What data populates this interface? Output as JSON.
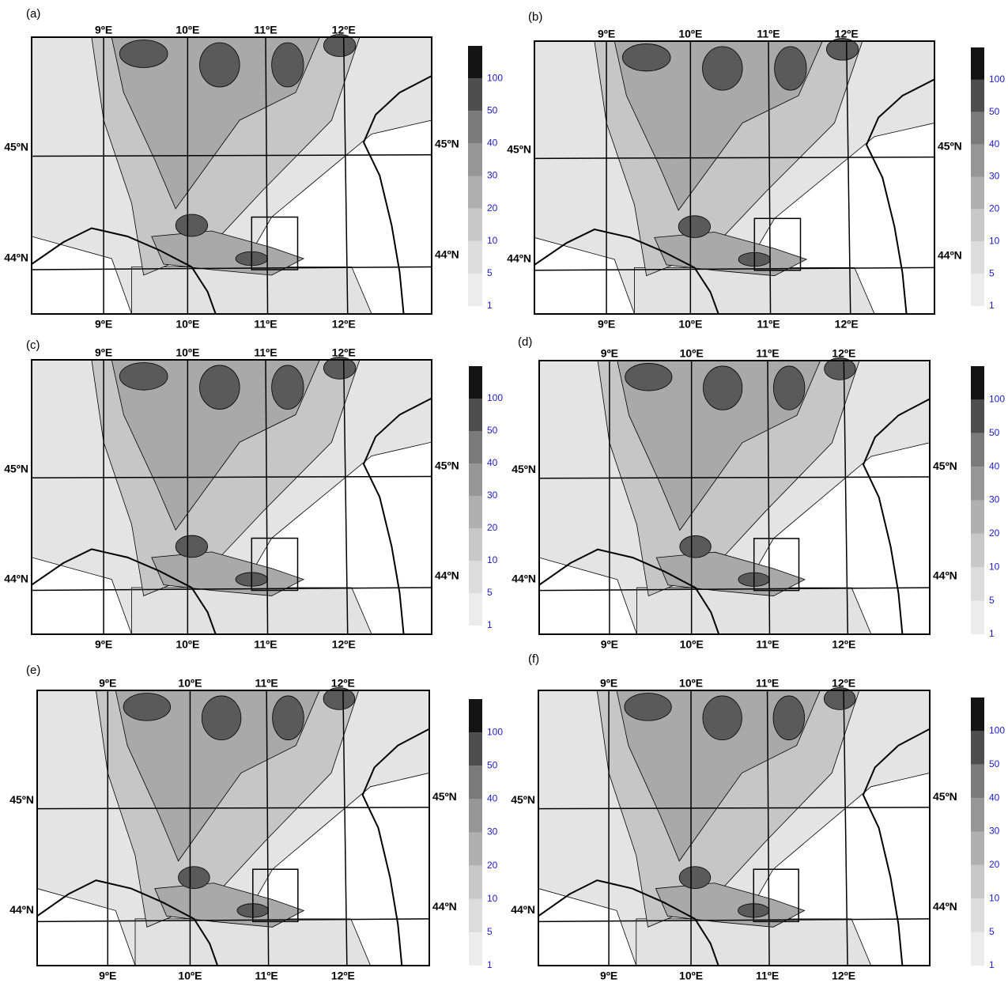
{
  "panels": [
    {
      "label": "(a)",
      "lon_top": [
        "9ºE",
        "10ºE",
        "11ºE",
        "12ºE"
      ],
      "lon_bottom": [
        "9ºE",
        "10ºE",
        "11ºE",
        "12ºE"
      ],
      "lat_left": [
        "45ºN",
        "44ºN"
      ],
      "lat_right": [
        "45ºN",
        "44ºN"
      ],
      "colorbar": [
        "1",
        "5",
        "10",
        "20",
        "30",
        "40",
        "50",
        "100"
      ]
    },
    {
      "label": "(b)",
      "lon_top": [
        "9ºE",
        "10ºE",
        "11ºE",
        "12ºE"
      ],
      "lon_bottom": [
        "9ºE",
        "10ºE",
        "11ºE",
        "12ºE"
      ],
      "lat_left": [
        "45ºN",
        "44ºN"
      ],
      "lat_right": [
        "45ºN",
        "44ºN"
      ],
      "colorbar": [
        "1",
        "5",
        "10",
        "20",
        "30",
        "40",
        "50",
        "100"
      ]
    },
    {
      "label": "(c)",
      "lon_top": [
        "9ºE",
        "10ºE",
        "11ºE",
        "12ºE"
      ],
      "lon_bottom": [
        "9ºE",
        "10ºE",
        "11ºE",
        "12ºE"
      ],
      "lat_left": [
        "45ºN",
        "44ºN"
      ],
      "lat_right": [
        "45ºN",
        "44ºN"
      ],
      "colorbar": [
        "1",
        "5",
        "10",
        "20",
        "30",
        "40",
        "50",
        "100"
      ]
    },
    {
      "label": "(d)",
      "lon_top": [
        "9ºE",
        "10ºE",
        "11ºE",
        "12ºE"
      ],
      "lon_bottom": [
        "9ºE",
        "10ºE",
        "11ºE",
        "12ºE"
      ],
      "lat_left": [
        "45ºN",
        "44ºN"
      ],
      "lat_right": [
        "45ºN",
        "44ºN"
      ],
      "colorbar": [
        "1",
        "5",
        "10",
        "20",
        "30",
        "40",
        "50",
        "100"
      ]
    },
    {
      "label": "(e)",
      "lon_top": [
        "9ºE",
        "10ºE",
        "11ºE",
        "12ºE"
      ],
      "lon_bottom": [
        "9ºE",
        "10ºE",
        "11ºE",
        "12ºE"
      ],
      "lat_left": [
        "45ºN",
        "44ºN"
      ],
      "lat_right": [
        "45ºN",
        "44ºN"
      ],
      "colorbar": [
        "1",
        "5",
        "10",
        "20",
        "30",
        "40",
        "50",
        "100"
      ]
    },
    {
      "label": "(f)",
      "lon_top": [
        "9ºE",
        "10ºE",
        "11ºE",
        "12ºE"
      ],
      "lon_bottom": [
        "9ºE",
        "10ºE",
        "11ºE",
        "12ºE"
      ],
      "lat_left": [
        "45ºN",
        "44ºN"
      ],
      "lat_right": [
        "45ºN",
        "44ºN"
      ],
      "colorbar": [
        "1",
        "5",
        "10",
        "20",
        "30",
        "40",
        "50",
        "100"
      ]
    }
  ]
}
